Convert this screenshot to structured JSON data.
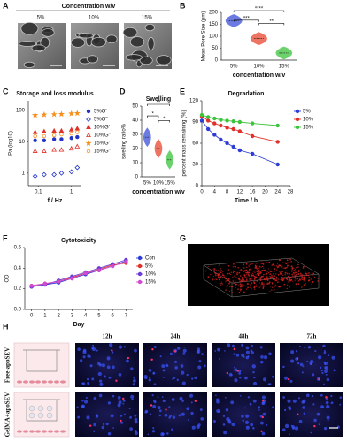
{
  "panel_labels": [
    "A",
    "B",
    "C",
    "D",
    "E",
    "F",
    "G",
    "H"
  ],
  "panel_a": {
    "title": "Concentration w/v",
    "labels": [
      "5%",
      "10%",
      "15%"
    ]
  },
  "chart_data": [
    {
      "type": "violin",
      "ylabel": "Mean Pore Size (μm)",
      "xlabel": "concentration  w/v",
      "categories": [
        "5%",
        "10%",
        "15%"
      ],
      "values": [
        165,
        90,
        30
      ],
      "colors": [
        "#3b4fd8",
        "#e8452e",
        "#3cc43c"
      ],
      "ylim": [
        0,
        200
      ],
      "yticks": [
        0,
        50,
        100,
        150,
        200
      ],
      "significance": [
        "****",
        "***",
        "**"
      ]
    },
    {
      "type": "scatter",
      "title": "Storage and loss modulus",
      "ylabel": "Pa (log10)",
      "xlabel": "f / Hz",
      "log": true,
      "x": [
        0.08,
        0.15,
        0.3,
        0.5,
        1,
        1.5
      ],
      "xlim": [
        0.05,
        2
      ],
      "xticks": [
        0.1,
        1
      ],
      "ylim": [
        0.4,
        200
      ],
      "yticks": [
        1,
        10,
        100
      ],
      "legend": "right",
      "series": [
        {
          "name": "5%G'",
          "color": "#2234c8",
          "marker": "circle",
          "values": [
            11,
            11,
            12,
            12,
            13,
            14
          ]
        },
        {
          "name": "5%G''",
          "color": "#2234c8",
          "marker": "diamond-open",
          "values": [
            0.8,
            0.9,
            0.9,
            1,
            1.1,
            1.5
          ]
        },
        {
          "name": "10%G'",
          "color": "#e0302a",
          "marker": "triangle",
          "values": [
            20,
            21,
            22,
            22,
            24,
            26
          ]
        },
        {
          "name": "10%G''",
          "color": "#e0302a",
          "marker": "triangle-open",
          "values": [
            5,
            5,
            5.5,
            5.5,
            6,
            7
          ]
        },
        {
          "name": "15%G'",
          "color": "#f5901e",
          "marker": "star",
          "values": [
            70,
            72,
            74,
            75,
            78,
            80
          ]
        },
        {
          "name": "15%G''",
          "color": "#f5901e",
          "marker": "circle-open",
          "values": [
            15,
            15,
            16,
            17,
            18,
            20
          ]
        }
      ]
    },
    {
      "type": "violin",
      "title": "Swelling",
      "ylabel": "swelling ratio%",
      "xlabel": "concentration  w/v",
      "categories": [
        "5%",
        "10%",
        "15%"
      ],
      "values": [
        28,
        20,
        12
      ],
      "colors": [
        "#3b4fd8",
        "#e8452e",
        "#3cc43c"
      ],
      "ylim": [
        0,
        50
      ],
      "yticks": [
        0,
        10,
        20,
        30,
        40,
        50
      ],
      "significance": [
        "**",
        "*",
        "*"
      ]
    },
    {
      "type": "line",
      "title": "Degradation",
      "ylabel": "percent mass remaining (%)",
      "xlabel": "Time / h",
      "x": [
        0,
        2,
        4,
        6,
        8,
        10,
        12,
        16,
        24
      ],
      "xlim": [
        0,
        28
      ],
      "xticks": [
        0,
        4,
        8,
        12,
        16,
        20,
        24,
        28
      ],
      "ylim": [
        0,
        120
      ],
      "yticks": [
        0,
        30,
        60,
        90,
        120
      ],
      "legend": "right",
      "series": [
        {
          "name": "5%",
          "color": "#2d3cd6",
          "values": [
            92,
            80,
            72,
            65,
            60,
            55,
            50,
            45,
            30
          ]
        },
        {
          "name": "10%",
          "color": "#e0302a",
          "values": [
            98,
            92,
            88,
            85,
            82,
            80,
            77,
            70,
            62
          ]
        },
        {
          "name": "15%",
          "color": "#3cc43c",
          "values": [
            100,
            97,
            95,
            93,
            92,
            91,
            90,
            88,
            85
          ]
        }
      ]
    },
    {
      "type": "line",
      "title": "Cytotoxicity",
      "ylabel": "OD",
      "xlabel": "Day",
      "x": [
        0,
        1,
        2,
        3,
        4,
        5,
        6,
        7
      ],
      "xlim": [
        -0.5,
        7.5
      ],
      "xticks": [
        0,
        1,
        2,
        3,
        4,
        5,
        6,
        7
      ],
      "ylim": [
        0,
        0.6
      ],
      "yticks": [
        {
          "value": 0,
          "label": "0.0"
        },
        {
          "value": 0.2,
          "label": "0.2"
        },
        {
          "value": 0.4,
          "label": "0.4"
        },
        {
          "value": 0.6,
          "label": "0.6"
        }
      ],
      "legend": "right",
      "series": [
        {
          "name": "Con",
          "color": "#2d3cd6",
          "values": [
            0.22,
            0.24,
            0.26,
            0.3,
            0.34,
            0.38,
            0.42,
            0.47
          ]
        },
        {
          "name": "5%",
          "color": "#e0302a",
          "values": [
            0.23,
            0.25,
            0.27,
            0.31,
            0.35,
            0.39,
            0.43,
            0.45
          ]
        },
        {
          "name": "10%",
          "color": "#6a3cd6",
          "values": [
            0.22,
            0.24,
            0.28,
            0.32,
            0.36,
            0.4,
            0.44,
            0.48
          ]
        },
        {
          "name": "15%",
          "color": "#d04ad0",
          "values": [
            0.23,
            0.25,
            0.27,
            0.3,
            0.35,
            0.38,
            0.42,
            0.46
          ]
        }
      ]
    }
  ],
  "panel_h": {
    "columns": [
      "12h",
      "24h",
      "48h",
      "72h"
    ],
    "rows": [
      "Free-apoSEV",
      "GelMA+apoSEV"
    ]
  }
}
